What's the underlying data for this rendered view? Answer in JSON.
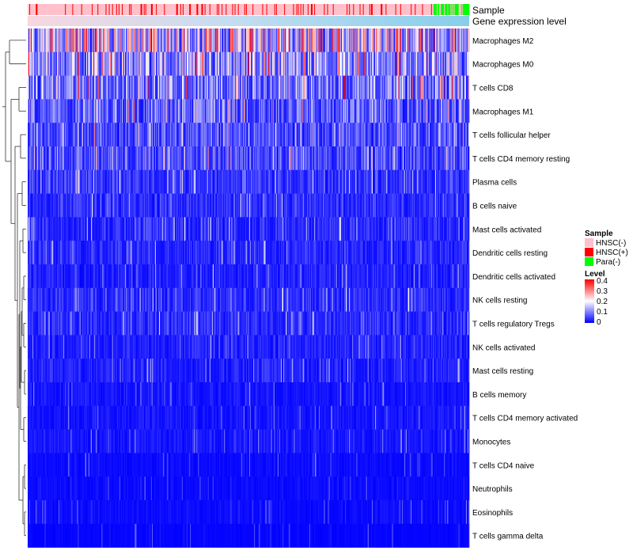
{
  "chart_data": {
    "type": "heatmap",
    "title": "",
    "annotation_labels": [
      "Sample",
      "Gene expression level"
    ],
    "rows": [
      {
        "label": "Macrophages M2",
        "mean": 0.2
      },
      {
        "label": "Macrophages M0",
        "mean": 0.14
      },
      {
        "label": "T cells CD8",
        "mean": 0.11
      },
      {
        "label": "Macrophages M1",
        "mean": 0.09
      },
      {
        "label": "T cells follicular helper",
        "mean": 0.07
      },
      {
        "label": "T cells CD4 memory resting",
        "mean": 0.07
      },
      {
        "label": "Plasma cells",
        "mean": 0.05
      },
      {
        "label": "B cells naive",
        "mean": 0.04
      },
      {
        "label": "Mast cells activated",
        "mean": 0.04
      },
      {
        "label": "Dendritic cells resting",
        "mean": 0.04
      },
      {
        "label": "Dendritic cells activated",
        "mean": 0.03
      },
      {
        "label": "NK cells resting",
        "mean": 0.04
      },
      {
        "label": "T cells regulatory  Tregs",
        "mean": 0.04
      },
      {
        "label": "NK cells activated",
        "mean": 0.03
      },
      {
        "label": "Mast cells resting",
        "mean": 0.03
      },
      {
        "label": "B cells memory",
        "mean": 0.02
      },
      {
        "label": "T cells CD4 memory activated",
        "mean": 0.02
      },
      {
        "label": "Monocytes",
        "mean": 0.02
      },
      {
        "label": "T cells CD4 naive",
        "mean": 0.01
      },
      {
        "label": "Neutrophils",
        "mean": 0.01
      },
      {
        "label": "Eosinophils",
        "mean": 0.01
      },
      {
        "label": "T cells gamma delta",
        "mean": 0.005
      }
    ],
    "sample_groups": [
      {
        "name": "HNSC(-)",
        "color": "#FFC0CB",
        "count": 420
      },
      {
        "name": "HNSC(+)",
        "color": "#FF0000",
        "count": 80
      },
      {
        "name": "Para(-)",
        "color": "#00FF00",
        "count": 44
      }
    ],
    "legend": {
      "sample_title": "Sample",
      "level_title": "Level",
      "level_ticks": [
        "0.4",
        "0.3",
        "0.2",
        "0.1",
        "0"
      ],
      "level_range": [
        0,
        0.4
      ]
    },
    "colors": {
      "low": "#0000FF",
      "mid": "#FFFFFF",
      "high": "#FF0000",
      "gene_expression_bar": "#87CEEB",
      "dendrogram": "#333333"
    }
  }
}
